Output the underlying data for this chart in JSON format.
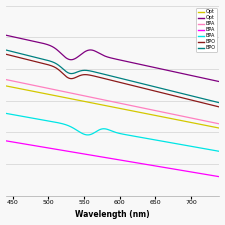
{
  "title": "",
  "xlabel": "Wavelength (nm)",
  "ylabel": "",
  "x_range": [
    440,
    740
  ],
  "legend_labels": [
    "Opt",
    "Opt",
    "BPA",
    "BPA",
    "BPA",
    "BPO",
    "BPO"
  ],
  "legend_colors": [
    "#d4c800",
    "#800080",
    "#ff80c0",
    "#ff00ff",
    "#00e5e5",
    "#8b1a1a",
    "#008080"
  ],
  "background": "#f8f8f8",
  "grid_color": "#d8d8d8"
}
